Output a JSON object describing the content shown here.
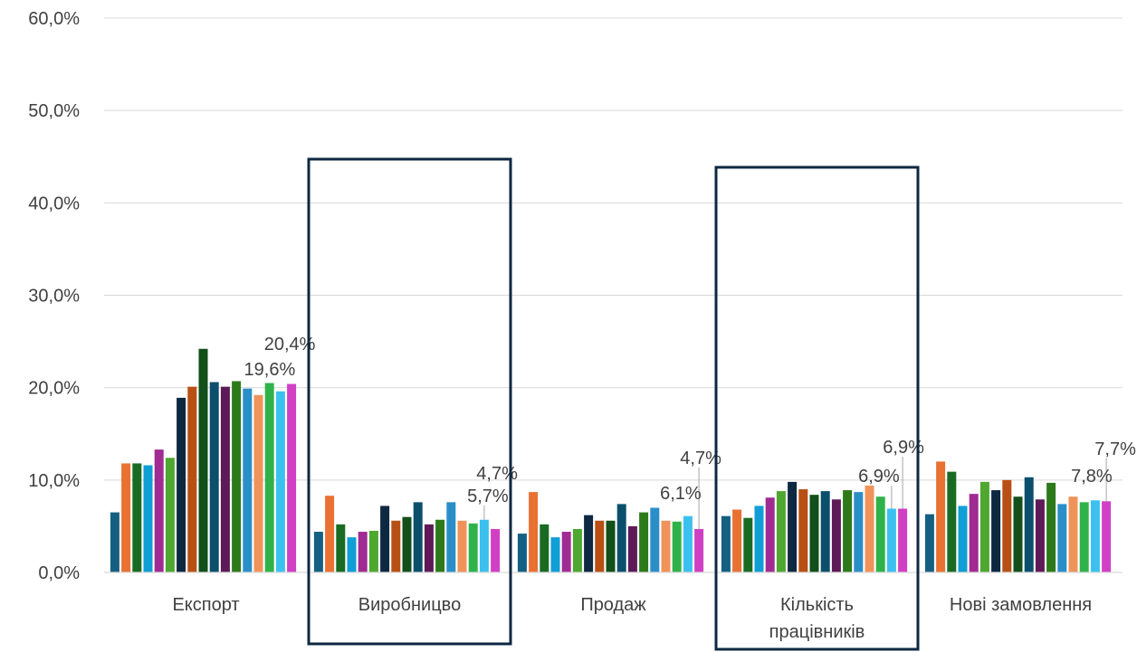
{
  "chart_data": {
    "type": "bar",
    "categories": [
      "Експорт",
      "Виробницво",
      "Продаж",
      "Кількість працівників",
      "Нові замовлення"
    ],
    "category_label_lines": [
      [
        "Експорт"
      ],
      [
        "Виробницво"
      ],
      [
        "Продаж"
      ],
      [
        "Кількість",
        "працівників"
      ],
      [
        "Нові замовлення"
      ]
    ],
    "ylim": [
      0,
      60
    ],
    "yticks": [
      "0,0%",
      "10,0%",
      "20,0%",
      "30,0%",
      "40,0%",
      "50,0%",
      "60,0%"
    ],
    "grid": true,
    "legend": "none",
    "series_colors": [
      "#156082",
      "#E97132",
      "#196B24",
      "#0F9ED5",
      "#A02B93",
      "#4EA72E",
      "#0E2841",
      "#B84F14",
      "#124F1A",
      "#0B4F6C",
      "#5E1A57",
      "#2D7A1B",
      "#2A8FC9",
      "#F0935A",
      "#30B24A",
      "#3CC1EF",
      "#D040C4"
    ],
    "values_by_category": [
      [
        6.5,
        11.8,
        11.8,
        11.6,
        13.3,
        12.4,
        18.9,
        20.1,
        24.2,
        20.6,
        20.1,
        20.7,
        19.9,
        19.2,
        20.5,
        19.6,
        20.4
      ],
      [
        4.4,
        8.3,
        5.2,
        3.8,
        4.4,
        4.5,
        7.2,
        5.6,
        6.0,
        7.6,
        5.2,
        5.7,
        7.6,
        5.6,
        5.3,
        5.7,
        4.7
      ],
      [
        4.2,
        8.7,
        5.2,
        3.8,
        4.4,
        4.7,
        6.2,
        5.6,
        5.6,
        7.4,
        5.0,
        6.5,
        7.0,
        5.6,
        5.5,
        6.1,
        4.7
      ],
      [
        6.1,
        6.8,
        5.9,
        7.2,
        8.1,
        8.8,
        9.8,
        9.0,
        8.4,
        8.8,
        7.9,
        8.9,
        8.7,
        9.4,
        8.2,
        6.9,
        6.9
      ],
      [
        6.3,
        12.0,
        10.9,
        7.2,
        8.5,
        9.8,
        8.9,
        10.0,
        8.2,
        10.3,
        7.9,
        9.7,
        7.4,
        8.2,
        7.6,
        7.8,
        7.7
      ]
    ],
    "data_labels": [
      {
        "category": 0,
        "series": 15,
        "text": "19,6%"
      },
      {
        "category": 0,
        "series": 16,
        "text": "20,4%"
      },
      {
        "category": 1,
        "series": 15,
        "text": "5,7%"
      },
      {
        "category": 1,
        "series": 16,
        "text": "4,7%"
      },
      {
        "category": 2,
        "series": 15,
        "text": "6,1%"
      },
      {
        "category": 2,
        "series": 16,
        "text": "4,7%"
      },
      {
        "category": 3,
        "series": 15,
        "text": "6,9%"
      },
      {
        "category": 3,
        "series": 16,
        "text": "6,9%"
      },
      {
        "category": 4,
        "series": 15,
        "text": "7,8%"
      },
      {
        "category": 4,
        "series": 16,
        "text": "7,7%"
      }
    ],
    "highlighted_categories": [
      1,
      3
    ],
    "highlight_color": "#0E2841"
  }
}
